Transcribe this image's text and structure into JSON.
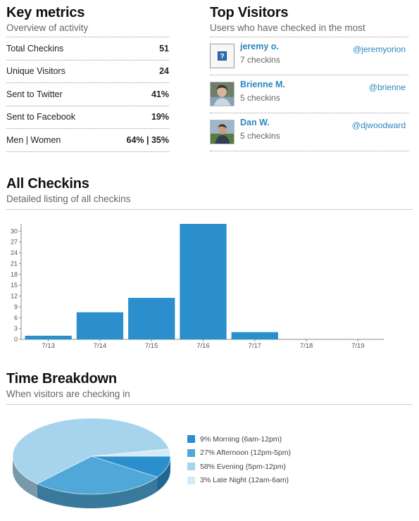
{
  "key_metrics": {
    "title": "Key metrics",
    "subtitle": "Overview of activity",
    "rows": [
      {
        "label": "Total Checkins",
        "value": "51"
      },
      {
        "label": "Unique Visitors",
        "value": "24"
      },
      {
        "label": "Sent to Twitter",
        "value": "41%"
      },
      {
        "label": "Sent to Facebook",
        "value": "19%"
      },
      {
        "label": "Men | Women",
        "value": "64% | 35%"
      }
    ]
  },
  "top_visitors": {
    "title": "Top Visitors",
    "subtitle": "Users who have checked in the most",
    "items": [
      {
        "name": "jeremy o.",
        "count": "7 checkins",
        "handle": "@jeremyorion",
        "avatar": "blank-avatar-icon"
      },
      {
        "name": "Brienne M.",
        "count": "5 checkins",
        "handle": "@brienne",
        "avatar": "photo-avatar"
      },
      {
        "name": "Dan W.",
        "count": "5 checkins",
        "handle": "@djwoodward",
        "avatar": "photo-avatar"
      }
    ]
  },
  "all_checkins": {
    "title": "All Checkins",
    "subtitle": "Detailed listing of all checkins"
  },
  "time_breakdown": {
    "title": "Time Breakdown",
    "subtitle": "When visitors are checking in"
  },
  "colors": {
    "bar": "#2a8fcc",
    "link": "#2a86bf",
    "pie": [
      "#2a8fcc",
      "#4fa8d8",
      "#a6d4ec",
      "#d3ebf7"
    ]
  },
  "chart_data": [
    {
      "type": "bar",
      "categories": [
        "7/13",
        "7/14",
        "7/15",
        "7/16",
        "7/17",
        "7/18",
        "7/19"
      ],
      "values": [
        1,
        7.5,
        11.5,
        32,
        2,
        0,
        0
      ],
      "yticks": [
        0,
        3,
        6,
        9,
        12,
        15,
        18,
        21,
        24,
        27,
        30
      ],
      "ylim": [
        0,
        32
      ],
      "color": "#2a8fcc"
    },
    {
      "type": "pie",
      "labels": [
        "9% Morning (6am-12pm)",
        "27% Afternoon (12pm-5pm)",
        "58% Evening (5pm-12pm)",
        "3% Late Night (12am-6am)"
      ],
      "values": [
        9,
        27,
        58,
        3
      ],
      "colors": [
        "#2a8fcc",
        "#4fa8d8",
        "#a6d4ec",
        "#d3ebf7"
      ],
      "legend": "right"
    }
  ]
}
